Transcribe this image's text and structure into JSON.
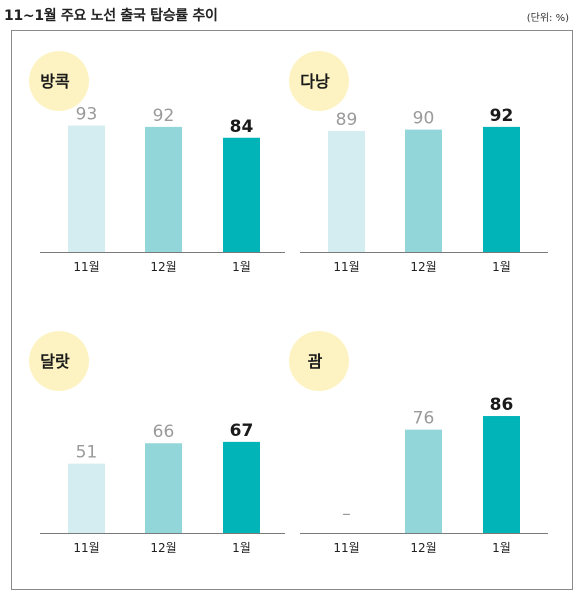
{
  "page": {
    "title": "11~1월 주요 노선 출국 탑승률 추이",
    "unit": "(단위: %)"
  },
  "colors": {
    "bar_light": "#d4edf0",
    "bar_mid": "#92d6da",
    "bar_dark": "#00b4b8",
    "badge": "#fdf3c2",
    "muted_label": "#9a9a9a",
    "strong_label": "#1a1a1a"
  },
  "chart_data": [
    {
      "type": "bar",
      "title": "방콕",
      "categories": [
        "11월",
        "12월",
        "1월"
      ],
      "values": [
        93,
        92,
        84
      ],
      "value_labels": [
        "93",
        "92",
        "84"
      ],
      "ylim": [
        0,
        100
      ]
    },
    {
      "type": "bar",
      "title": "다낭",
      "categories": [
        "11월",
        "12월",
        "1월"
      ],
      "values": [
        89,
        90,
        92
      ],
      "value_labels": [
        "89",
        "90",
        "92"
      ],
      "ylim": [
        0,
        100
      ]
    },
    {
      "type": "bar",
      "title": "달랏",
      "categories": [
        "11월",
        "12월",
        "1월"
      ],
      "values": [
        51,
        66,
        67
      ],
      "value_labels": [
        "51",
        "66",
        "67"
      ],
      "ylim": [
        0,
        100
      ]
    },
    {
      "type": "bar",
      "title": "괌",
      "categories": [
        "11월",
        "12월",
        "1월"
      ],
      "values": [
        null,
        76,
        86
      ],
      "value_labels": [
        "–",
        "76",
        "86"
      ],
      "ylim": [
        0,
        100
      ]
    }
  ]
}
